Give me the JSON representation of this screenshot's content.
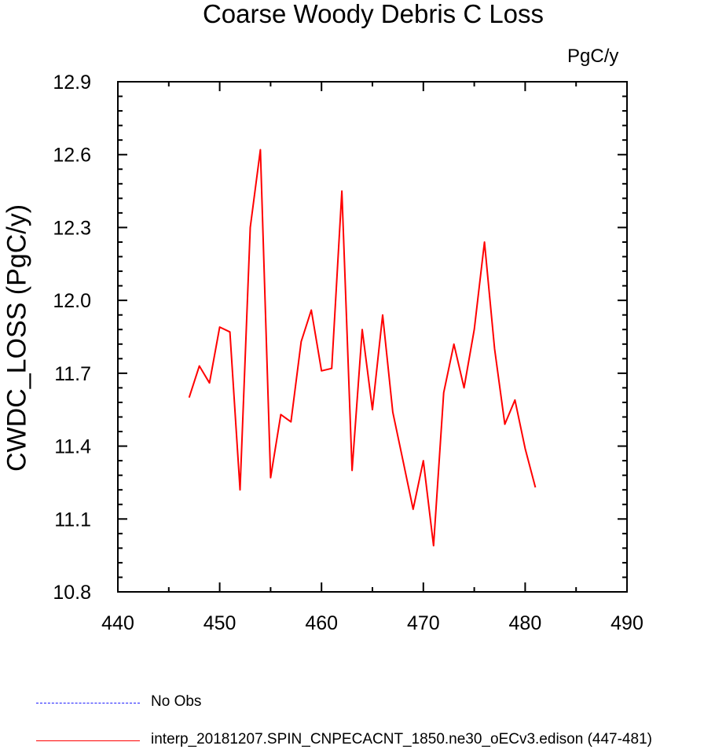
{
  "chart_data": {
    "type": "line",
    "title": "Coarse Woody Debris C Loss",
    "units_label": "PgC/y",
    "ylabel": "CWDC_LOSS  (PgC/y)",
    "xlabel": "",
    "xlim": [
      440,
      490
    ],
    "ylim": [
      10.8,
      12.9
    ],
    "xticks": [
      440,
      450,
      460,
      470,
      480,
      490
    ],
    "yticks": [
      10.8,
      11.1,
      11.4,
      11.7,
      12.0,
      12.3,
      12.6,
      12.9
    ],
    "ytick_labels": [
      "10.8",
      "11.1",
      "11.4",
      "11.7",
      "12.0",
      "12.3",
      "12.6",
      "12.9"
    ],
    "legend_position": "bottom",
    "series": [
      {
        "name": "No Obs",
        "color": "#1a1aff",
        "dash": "dashed",
        "x": [],
        "values": []
      },
      {
        "name": "interp_20181207.SPIN_CNPECACNT_1850.ne30_oECv3.edison (447-481)",
        "color": "#ff0000",
        "dash": "solid",
        "x": [
          447,
          448,
          449,
          450,
          451,
          452,
          453,
          454,
          455,
          456,
          457,
          458,
          459,
          460,
          461,
          462,
          463,
          464,
          465,
          466,
          467,
          468,
          469,
          470,
          471,
          472,
          473,
          474,
          475,
          476,
          477,
          478,
          479,
          480,
          481
        ],
        "values": [
          11.6,
          11.73,
          11.66,
          11.89,
          11.87,
          11.22,
          12.3,
          12.62,
          11.27,
          11.53,
          11.5,
          11.83,
          11.96,
          11.71,
          11.72,
          12.45,
          11.3,
          11.88,
          11.55,
          11.94,
          11.54,
          11.34,
          11.14,
          11.34,
          10.99,
          11.62,
          11.82,
          11.64,
          11.88,
          12.24,
          11.8,
          11.49,
          11.59,
          11.39,
          11.23
        ]
      }
    ]
  }
}
